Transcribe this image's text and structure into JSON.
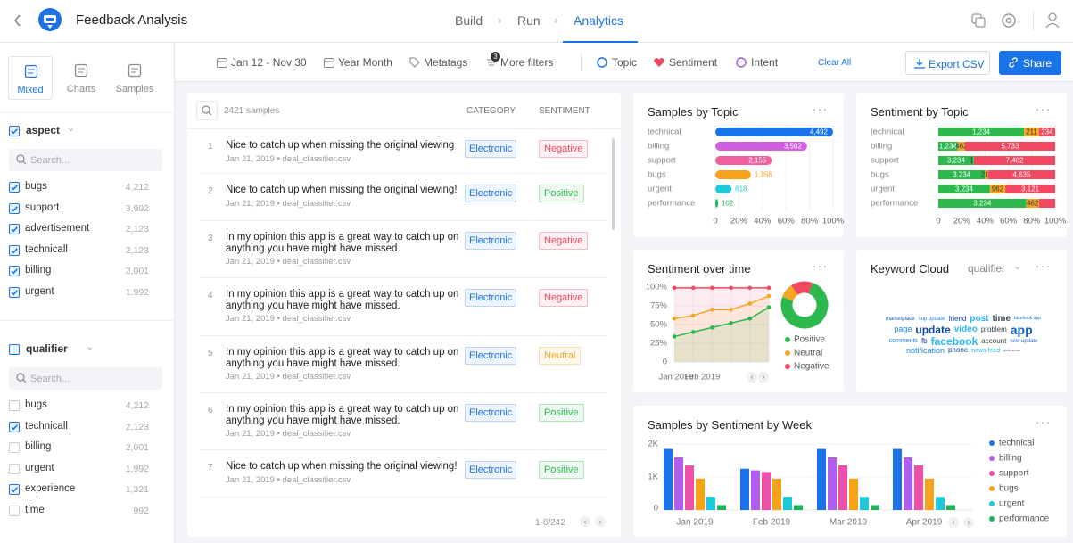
{
  "header": {
    "title": "Feedback Analysis",
    "nav": [
      "Build",
      "Run",
      "Analytics"
    ],
    "active_nav": 2
  },
  "sidebar": {
    "tabs": [
      "Mixed",
      "Charts",
      "Samples"
    ],
    "active_tab": 0,
    "groups": [
      {
        "name": "aspect",
        "checked": true,
        "search": "Search...",
        "items": [
          {
            "label": "bugs",
            "count": "4,212",
            "checked": true
          },
          {
            "label": "support",
            "count": "3,992",
            "checked": true
          },
          {
            "label": "advertisement",
            "count": "2,123",
            "checked": true
          },
          {
            "label": "technicall",
            "count": "2,123",
            "checked": true
          },
          {
            "label": "billing",
            "count": "2,001",
            "checked": true
          },
          {
            "label": "urgent",
            "count": "1,992",
            "checked": true
          }
        ]
      },
      {
        "name": "qualifier",
        "checked": "partial",
        "search": "Search...",
        "items": [
          {
            "label": "bugs",
            "count": "4,212",
            "checked": false
          },
          {
            "label": "technicall",
            "count": "2,123",
            "checked": true
          },
          {
            "label": "billing",
            "count": "2,001",
            "checked": false
          },
          {
            "label": "urgent",
            "count": "1,992",
            "checked": false
          },
          {
            "label": "experience",
            "count": "1,321",
            "checked": true
          },
          {
            "label": "time",
            "count": "992",
            "checked": false
          }
        ]
      }
    ]
  },
  "toolbar": {
    "filters": [
      "Jan 12 - Nov 30",
      "Year Month",
      "Metatags",
      "More filters"
    ],
    "more_filters_badge": "3",
    "views": [
      "Topic",
      "Sentiment",
      "Intent"
    ],
    "clear": "Clear All",
    "export": "Export CSV",
    "share": "Share"
  },
  "samples": {
    "count_label": "2421 samples",
    "columns": [
      "CATEGORY",
      "SENTIMENT"
    ],
    "pagination": "1-8/242",
    "sentiment_colors": {
      "Negative": "#ef4860",
      "Positive": "#2db84d",
      "Neutral": "#f5a623"
    },
    "rows": [
      {
        "index": "1",
        "text": "Nice to catch up when missing the original viewing",
        "meta": "Jan 21, 2019 • deal_classifier.csv",
        "category": "Electronic",
        "sentiment": "Negative"
      },
      {
        "index": "2",
        "text": "Nice to catch up when missing the original viewing!",
        "meta": "Jan 21, 2019 • deal_classifier.csv",
        "category": "Electronic",
        "sentiment": "Positive"
      },
      {
        "index": "3",
        "text": "In my opinion this app is a great way to catch up on anything you have might have missed.",
        "meta": "Jan 21, 2019 • deal_classifier.csv",
        "category": "Electronic",
        "sentiment": "Negative"
      },
      {
        "index": "4",
        "text": "In my opinion this app is a great way to catch up on anything you have might have missed.",
        "meta": "Jan 21, 2019 • deal_classifier.csv",
        "category": "Electronic",
        "sentiment": "Negative"
      },
      {
        "index": "5",
        "text": "In my opinion this app is a great way to catch up on anything you have might have missed.",
        "meta": "Jan 21, 2019 • deal_classifier.csv",
        "category": "Electronic",
        "sentiment": "Neutral"
      },
      {
        "index": "6",
        "text": "In my opinion this app is a great way to catch up on anything you have might have missed.",
        "meta": "Jan 21, 2019 • deal_classifier.csv",
        "category": "Electronic",
        "sentiment": "Positive"
      },
      {
        "index": "7",
        "text": "Nice to catch up when missing the original viewing!",
        "meta": "Jan 21, 2019 • deal_classifier.csv",
        "category": "Electronic",
        "sentiment": "Positive"
      }
    ]
  },
  "samples_by_topic": {
    "type": "bar",
    "title": "Samples by Topic",
    "categories": [
      "technical",
      "billing",
      "support",
      "bugs",
      "urgent",
      "performance"
    ],
    "values": [
      4492,
      3502,
      2155,
      1356,
      618,
      102
    ],
    "value_labels": [
      "4,492",
      "3,502",
      "2,155",
      "1,356",
      "618",
      "102"
    ],
    "colors": [
      "#1a73e8",
      "#cf5fe0",
      "#f0609e",
      "#f7a21b",
      "#1fc8d6",
      "#21b35b"
    ],
    "xticks": [
      0,
      {
        "value": 20,
        "label": "20%"
      },
      {
        "value": 40,
        "label": "40%"
      },
      {
        "value": 60,
        "label": "60%"
      },
      {
        "value": 80,
        "label": "80%"
      },
      {
        "value": 100,
        "label": "100%"
      }
    ]
  },
  "sentiment_by_topic": {
    "type": "stacked_bar",
    "title": "Sentiment by Topic",
    "categories": [
      "technical",
      "billing",
      "support",
      "bugs",
      "urgent",
      "performance"
    ],
    "series": [
      {
        "name": "Positive",
        "color": "#2db84d",
        "values": [
          1234,
          1234,
          3234,
          3234,
          3234,
          3234
        ],
        "value_labels": [
          "1,234",
          "1,234",
          "3,234",
          "3,234",
          "3,234",
          "3,234"
        ]
      },
      {
        "name": "Neutral",
        "color": "#f5a623",
        "values": [
          211,
          462,
          12,
          211,
          962,
          462
        ],
        "value_labels": [
          "211",
          "462",
          "12",
          "211",
          "962",
          "462"
        ]
      },
      {
        "name": "Negative",
        "color": "#ef4860",
        "values": [
          234,
          5733,
          7402,
          4635,
          3121,
          600
        ],
        "value_labels": [
          "234",
          "5,733",
          "7,402",
          "4,635",
          "3,121",
          null
        ]
      }
    ],
    "xticks": [
      0,
      {
        "value": 20,
        "label": "20%"
      },
      {
        "value": 40,
        "label": "40%"
      },
      {
        "value": 60,
        "label": "60%"
      },
      {
        "value": 80,
        "label": "80%"
      },
      {
        "value": 100,
        "label": "100%"
      }
    ]
  },
  "sentiment_over_time": {
    "type": "line",
    "title": "Sentiment over time",
    "categories": [
      "Jan 2019",
      "Feb 2019",
      null,
      null,
      null,
      null
    ],
    "series": [
      {
        "name": "Positive",
        "color": "#2db84d",
        "values": [
          34,
          40,
          46,
          52,
          58,
          73
        ]
      },
      {
        "name": "Neutral",
        "color": "#f5a623",
        "values": [
          58,
          62,
          70,
          70,
          78,
          88
        ]
      },
      {
        "name": "Negative",
        "color": "#ef4860",
        "values": [
          99,
          99,
          99,
          99,
          99,
          99
        ]
      }
    ],
    "ylim": [
      0,
      100
    ],
    "yticks": [
      0,
      {
        "value": 25,
        "label": "25%"
      },
      {
        "value": 50,
        "label": "50%"
      },
      {
        "value": 75,
        "label": "75%"
      },
      {
        "value": 100,
        "label": "100%"
      }
    ],
    "donut": [
      75,
      10,
      15
    ]
  },
  "keyword_cloud": {
    "title": "Keyword Cloud",
    "dropdown": "qualifier",
    "words": [
      {
        "text": "marketplace",
        "weight": 6
      },
      {
        "text": "sup update",
        "weight": 6
      },
      {
        "text": "friend",
        "weight": 8
      },
      {
        "text": "post",
        "weight": 10
      },
      {
        "text": "time",
        "weight": 10
      },
      {
        "text": "facebook app",
        "weight": 5
      },
      {
        "text": "page",
        "weight": 9
      },
      {
        "text": "update",
        "weight": 12
      },
      {
        "text": "video",
        "weight": 10
      },
      {
        "text": "problem",
        "weight": 8
      },
      {
        "text": "app",
        "weight": 14
      },
      {
        "text": "comments",
        "weight": 7
      },
      {
        "text": "fb",
        "weight": 8
      },
      {
        "text": "facebook",
        "weight": 12
      },
      {
        "text": "account",
        "weight": 8
      },
      {
        "text": "new update",
        "weight": 6
      },
      {
        "text": "notification",
        "weight": 9
      },
      {
        "text": "phone",
        "weight": 8
      },
      {
        "text": "news feed",
        "weight": 7
      },
      {
        "text": "dark mode",
        "weight": 4
      }
    ],
    "colors": [
      "#1565c0",
      "#1e88e5",
      "#0d47a1",
      "#29b6f6",
      "#37474f"
    ]
  },
  "samples_by_week": {
    "type": "grouped_bar",
    "title": "Samples by Sentiment by Week",
    "categories": [
      "Jan 2019",
      "Feb 2019",
      "Mar 2019",
      "Apr 2019"
    ],
    "series": [
      {
        "name": "technical",
        "color": "#1a73e8",
        "values": [
          1850,
          1250,
          1850,
          1850
        ]
      },
      {
        "name": "billing",
        "color": "#b15ef0",
        "values": [
          1600,
          1200,
          1600,
          1600
        ]
      },
      {
        "name": "support",
        "color": "#ee4fa8",
        "values": [
          1350,
          1150,
          1350,
          1350
        ]
      },
      {
        "name": "bugs",
        "color": "#f7a21b",
        "values": [
          950,
          950,
          950,
          950
        ]
      },
      {
        "name": "urgent",
        "color": "#1fc8d6",
        "values": [
          400,
          400,
          400,
          400
        ]
      },
      {
        "name": "performance",
        "color": "#21b35b",
        "values": [
          150,
          150,
          150,
          150
        ]
      }
    ],
    "ylim": [
      0,
      2000
    ],
    "yticks": [
      0,
      {
        "value": 1000,
        "label": "1K"
      },
      {
        "value": 2000,
        "label": "2K"
      }
    ]
  }
}
